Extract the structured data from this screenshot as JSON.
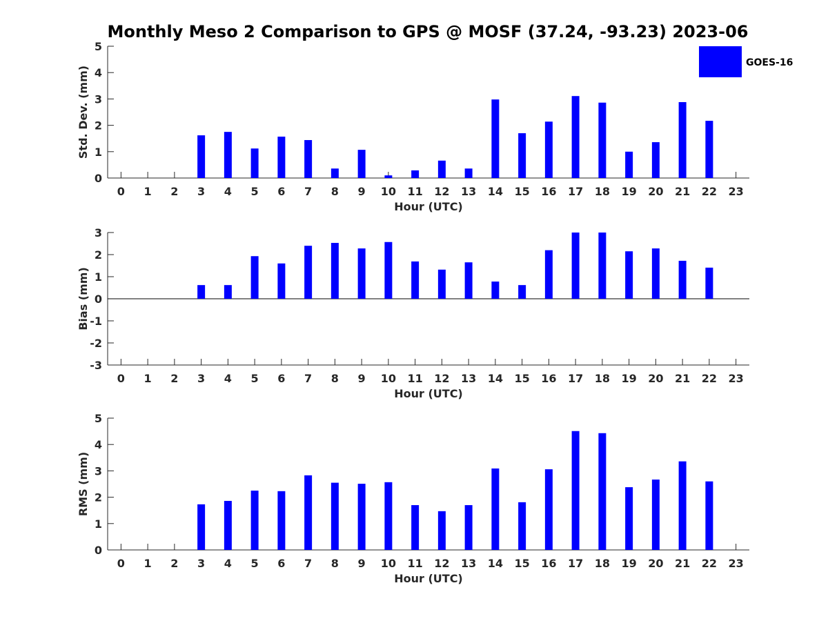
{
  "title": "Monthly Meso 2 Comparison to GPS @ MOSF (37.24, -93.23) 2023-06",
  "legend": {
    "label": "GOES-16",
    "color": "#0000ff",
    "placement": "top-right"
  },
  "chart_data": [
    {
      "type": "bar",
      "name": "std",
      "categories": [
        "0",
        "1",
        "2",
        "3",
        "4",
        "5",
        "6",
        "7",
        "8",
        "9",
        "10",
        "11",
        "12",
        "13",
        "14",
        "15",
        "16",
        "17",
        "18",
        "19",
        "20",
        "21",
        "22",
        "23"
      ],
      "series": [
        {
          "name": "GOES-16",
          "values": [
            null,
            null,
            null,
            1.62,
            1.75,
            1.12,
            1.57,
            1.44,
            0.36,
            1.07,
            0.1,
            0.29,
            0.66,
            0.36,
            2.98,
            1.7,
            2.14,
            3.11,
            2.86,
            1.0,
            1.36,
            2.88,
            2.17,
            null
          ]
        }
      ],
      "xlabel": "Hour (UTC)",
      "ylabel": "Std. Dev. (mm)",
      "ylim": [
        0,
        5
      ],
      "yticks": [
        "0",
        "1",
        "2",
        "3",
        "4",
        "5"
      ],
      "grid": false
    },
    {
      "type": "bar",
      "name": "bias",
      "categories": [
        "0",
        "1",
        "2",
        "3",
        "4",
        "5",
        "6",
        "7",
        "8",
        "9",
        "10",
        "11",
        "12",
        "13",
        "14",
        "15",
        "16",
        "17",
        "18",
        "19",
        "20",
        "21",
        "22",
        "23"
      ],
      "series": [
        {
          "name": "GOES-16",
          "values": [
            null,
            null,
            null,
            0.62,
            0.62,
            1.93,
            1.6,
            2.4,
            2.53,
            2.28,
            2.57,
            1.69,
            1.32,
            1.65,
            0.78,
            0.62,
            2.2,
            3.0,
            3.0,
            2.15,
            2.28,
            1.72,
            1.41,
            null
          ]
        }
      ],
      "xlabel": "Hour (UTC)",
      "ylabel": "Bias (mm)",
      "ylim": [
        -3,
        3
      ],
      "yticks": [
        "-3",
        "-2",
        "-1",
        "0",
        "1",
        "2",
        "3"
      ],
      "zero_line": true,
      "grid": false
    },
    {
      "type": "bar",
      "name": "rms",
      "categories": [
        "0",
        "1",
        "2",
        "3",
        "4",
        "5",
        "6",
        "7",
        "8",
        "9",
        "10",
        "11",
        "12",
        "13",
        "14",
        "15",
        "16",
        "17",
        "18",
        "19",
        "20",
        "21",
        "22",
        "23"
      ],
      "series": [
        {
          "name": "GOES-16",
          "values": [
            null,
            null,
            null,
            1.73,
            1.86,
            2.25,
            2.23,
            2.83,
            2.55,
            2.51,
            2.57,
            1.7,
            1.47,
            1.7,
            3.09,
            1.81,
            3.06,
            4.51,
            4.43,
            2.38,
            2.67,
            3.36,
            2.6,
            null
          ]
        }
      ],
      "xlabel": "Hour (UTC)",
      "ylabel": "RMS (mm)",
      "ylim": [
        0,
        5
      ],
      "yticks": [
        "0",
        "1",
        "2",
        "3",
        "4",
        "5"
      ],
      "grid": false
    }
  ]
}
